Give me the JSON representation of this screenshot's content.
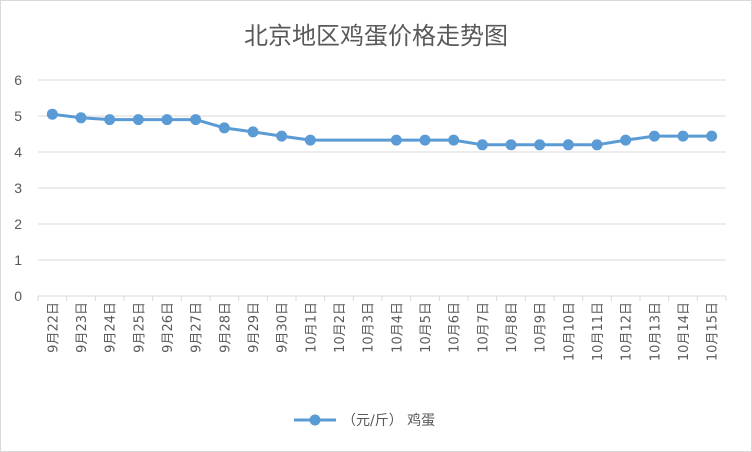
{
  "chart_data": {
    "type": "line",
    "title": "北京地区鸡蛋价格走势图",
    "xlabel": "",
    "ylabel": "",
    "ylim": [
      0,
      6
    ],
    "yticks": [
      "0",
      "1",
      "2",
      "3",
      "4",
      "5",
      "6"
    ],
    "grid": true,
    "legend_position": "bottom",
    "categories": [
      "9月22日",
      "9月23日",
      "9月24日",
      "9月25日",
      "9月26日",
      "9月27日",
      "9月28日",
      "9月29日",
      "9月30日",
      "10月1日",
      "10月2日",
      "10月3日",
      "10月4日",
      "10月5日",
      "10月6日",
      "10月7日",
      "10月8日",
      "10月9日",
      "10月10日",
      "10月11日",
      "10月12日",
      "10月13日",
      "10月14日",
      "10月15日"
    ],
    "series": [
      {
        "name": "（元/斤） 鸡蛋",
        "color": "#5b9bd5",
        "values": [
          5.05,
          4.95,
          4.9,
          4.9,
          4.9,
          4.9,
          4.67,
          4.56,
          4.44,
          4.33,
          null,
          null,
          4.33,
          4.33,
          4.33,
          4.2,
          4.2,
          4.2,
          4.2,
          4.2,
          4.33,
          4.44,
          4.44,
          4.44
        ]
      }
    ]
  }
}
